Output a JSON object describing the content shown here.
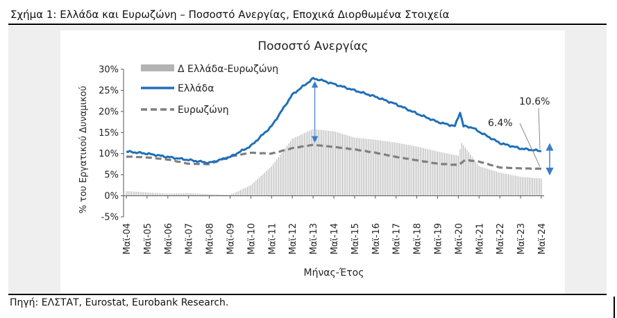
{
  "figure_title": "Σχήμα 1: Ελλάδα και Ευρωζώνη – Ποσοστό Ανεργίας, Εποχικά Διορθωμένα Στοιχεία",
  "source": "Πηγή: ΕΛΣΤΑΤ, Eurostat, Eurobank Research.",
  "colors": {
    "greece": "#1f6fb8",
    "eurozone": "#7f7f7f",
    "difference": "#b3b3b3",
    "arrow": "#3a7dc9"
  },
  "chart_data": {
    "type": "line",
    "title": "Ποσοστό Ανεργίας",
    "xlabel": "Μήνας-Έτος",
    "ylabel": "% του Εργατικού Δυναμικού",
    "ylim": [
      -5,
      30
    ],
    "yticks": [
      -5,
      0,
      5,
      10,
      15,
      20,
      25,
      30
    ],
    "ytick_labels": [
      "-5%",
      "0%",
      "5%",
      "10%",
      "15%",
      "20%",
      "25%",
      "30%"
    ],
    "x_range": [
      "2004-05",
      "2024-05"
    ],
    "x_tick_labels": [
      "Μαϊ-04",
      "Μαϊ-05",
      "Μαϊ-06",
      "Μαϊ-07",
      "Μαϊ-08",
      "Μαϊ-09",
      "Μαϊ-10",
      "Μαϊ-11",
      "Μαϊ-12",
      "Μαϊ-13",
      "Μαϊ-14",
      "Μαϊ-15",
      "Μαϊ-16",
      "Μαϊ-17",
      "Μαϊ-18",
      "Μαϊ-19",
      "Μαϊ-20",
      "Μαϊ-21",
      "Μαϊ-22",
      "Μαϊ-23",
      "Μαϊ-24"
    ],
    "grid": false,
    "legend_position": "top-left",
    "series": [
      {
        "name": "Δ Ελλάδα-Ευρωζώνη",
        "type": "bar",
        "points": [
          [
            "2004-05",
            1.1
          ],
          [
            "2005-05",
            0.8
          ],
          [
            "2006-05",
            0.5
          ],
          [
            "2007-05",
            0.6
          ],
          [
            "2008-05",
            0.4
          ],
          [
            "2009-05",
            0.2
          ],
          [
            "2010-05",
            2.5
          ],
          [
            "2011-05",
            7.0
          ],
          [
            "2012-05",
            13.5
          ],
          [
            "2013-05",
            15.8
          ],
          [
            "2014-05",
            15.3
          ],
          [
            "2015-05",
            13.8
          ],
          [
            "2016-05",
            13.3
          ],
          [
            "2017-05",
            12.6
          ],
          [
            "2018-05",
            11.7
          ],
          [
            "2019-05",
            10.5
          ],
          [
            "2020-05",
            9.5
          ],
          [
            "2020-07",
            12.5
          ],
          [
            "2021-05",
            7.0
          ],
          [
            "2022-05",
            5.5
          ],
          [
            "2023-05",
            4.5
          ],
          [
            "2024-05",
            4.1
          ]
        ]
      },
      {
        "name": "Ελλάδα",
        "type": "line",
        "points": [
          [
            "2004-05",
            10.5
          ],
          [
            "2005-05",
            10.0
          ],
          [
            "2006-05",
            9.2
          ],
          [
            "2007-05",
            8.5
          ],
          [
            "2008-05",
            7.8
          ],
          [
            "2009-05",
            9.2
          ],
          [
            "2010-05",
            11.8
          ],
          [
            "2011-05",
            16.5
          ],
          [
            "2012-05",
            24.0
          ],
          [
            "2013-05",
            27.8
          ],
          [
            "2013-09",
            27.5
          ],
          [
            "2014-05",
            26.5
          ],
          [
            "2015-05",
            25.0
          ],
          [
            "2016-05",
            23.5
          ],
          [
            "2017-05",
            21.7
          ],
          [
            "2018-05",
            19.5
          ],
          [
            "2019-05",
            17.5
          ],
          [
            "2020-03",
            16.5
          ],
          [
            "2020-06",
            19.8
          ],
          [
            "2020-08",
            16.5
          ],
          [
            "2021-01",
            16.2
          ],
          [
            "2021-05",
            15.2
          ],
          [
            "2022-05",
            12.5
          ],
          [
            "2023-05",
            11.2
          ],
          [
            "2024-05",
            10.6
          ]
        ]
      },
      {
        "name": "Ευρωζώνη",
        "type": "line",
        "points": [
          [
            "2004-05",
            9.3
          ],
          [
            "2005-05",
            9.1
          ],
          [
            "2006-05",
            8.6
          ],
          [
            "2007-05",
            7.6
          ],
          [
            "2008-05",
            7.5
          ],
          [
            "2009-05",
            9.3
          ],
          [
            "2010-05",
            10.2
          ],
          [
            "2011-05",
            10.0
          ],
          [
            "2012-05",
            11.3
          ],
          [
            "2013-05",
            12.1
          ],
          [
            "2014-05",
            11.6
          ],
          [
            "2015-05",
            11.0
          ],
          [
            "2016-05",
            10.2
          ],
          [
            "2017-05",
            9.2
          ],
          [
            "2018-05",
            8.4
          ],
          [
            "2019-05",
            7.6
          ],
          [
            "2020-05",
            7.3
          ],
          [
            "2020-09",
            8.5
          ],
          [
            "2021-05",
            8.1
          ],
          [
            "2022-05",
            6.7
          ],
          [
            "2023-05",
            6.5
          ],
          [
            "2024-05",
            6.4
          ]
        ]
      }
    ],
    "annotations": [
      {
        "text": "6.4%"
      },
      {
        "text": "10.6%"
      }
    ]
  }
}
